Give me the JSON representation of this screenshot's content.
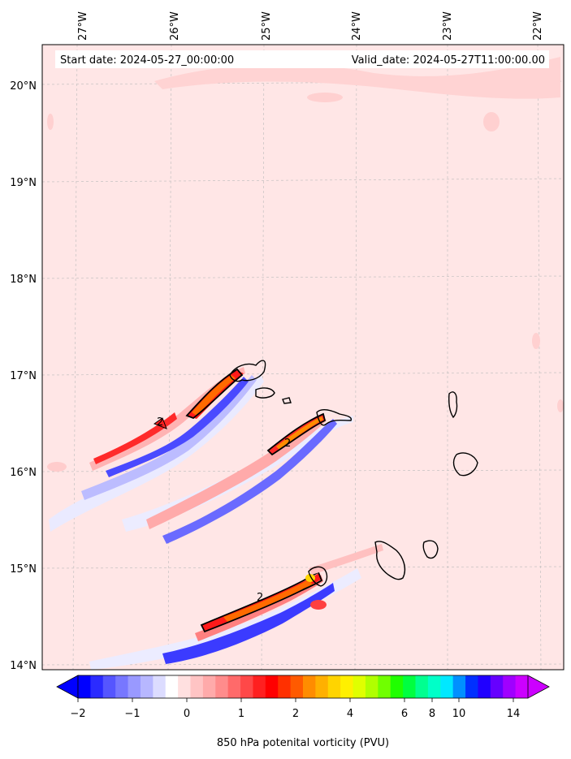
{
  "map": {
    "start_date_text": "Start date: 2024-05-27_00:00:00",
    "valid_date_text": "Valid_date: 2024-05-27T11:00:00.00",
    "lon_labels": [
      "27°W",
      "26°W",
      "25°W",
      "24°W",
      "23°W",
      "22°W"
    ],
    "lat_labels": [
      "20°N",
      "19°N",
      "18°N",
      "17°N",
      "16°N",
      "15°N",
      "14°N"
    ],
    "contour_labels": [
      "2",
      "2",
      "2"
    ],
    "colors": {
      "background_field": "#ffe6e6",
      "coastline": "#000000",
      "frame": "#000000"
    }
  },
  "colorbar": {
    "title": "850 hPa potenital vorticity (PVU)",
    "tick_labels": [
      "−2",
      "−1",
      "0",
      "1",
      "2",
      "4",
      "6",
      "8",
      "10",
      "14"
    ],
    "colors": [
      "#0000ff",
      "#2b2bff",
      "#5555ff",
      "#7777ff",
      "#9999ff",
      "#b7b7ff",
      "#dcdcff",
      "#ffffff",
      "#ffe0e0",
      "#ffc4c4",
      "#ffaaaa",
      "#ff8c8c",
      "#ff6a6a",
      "#ff4848",
      "#ff2020",
      "#ff0000",
      "#ff3000",
      "#ff5a00",
      "#ff8c00",
      "#ffb000",
      "#ffd400",
      "#fff000",
      "#e0ff00",
      "#b0ff00",
      "#70ff00",
      "#20ff00",
      "#00ff40",
      "#00ff90",
      "#00ffc8",
      "#00e8ff",
      "#0090ff",
      "#0030ff",
      "#2000ff",
      "#6600ff",
      "#a000ff",
      "#cc00ff"
    ]
  }
}
